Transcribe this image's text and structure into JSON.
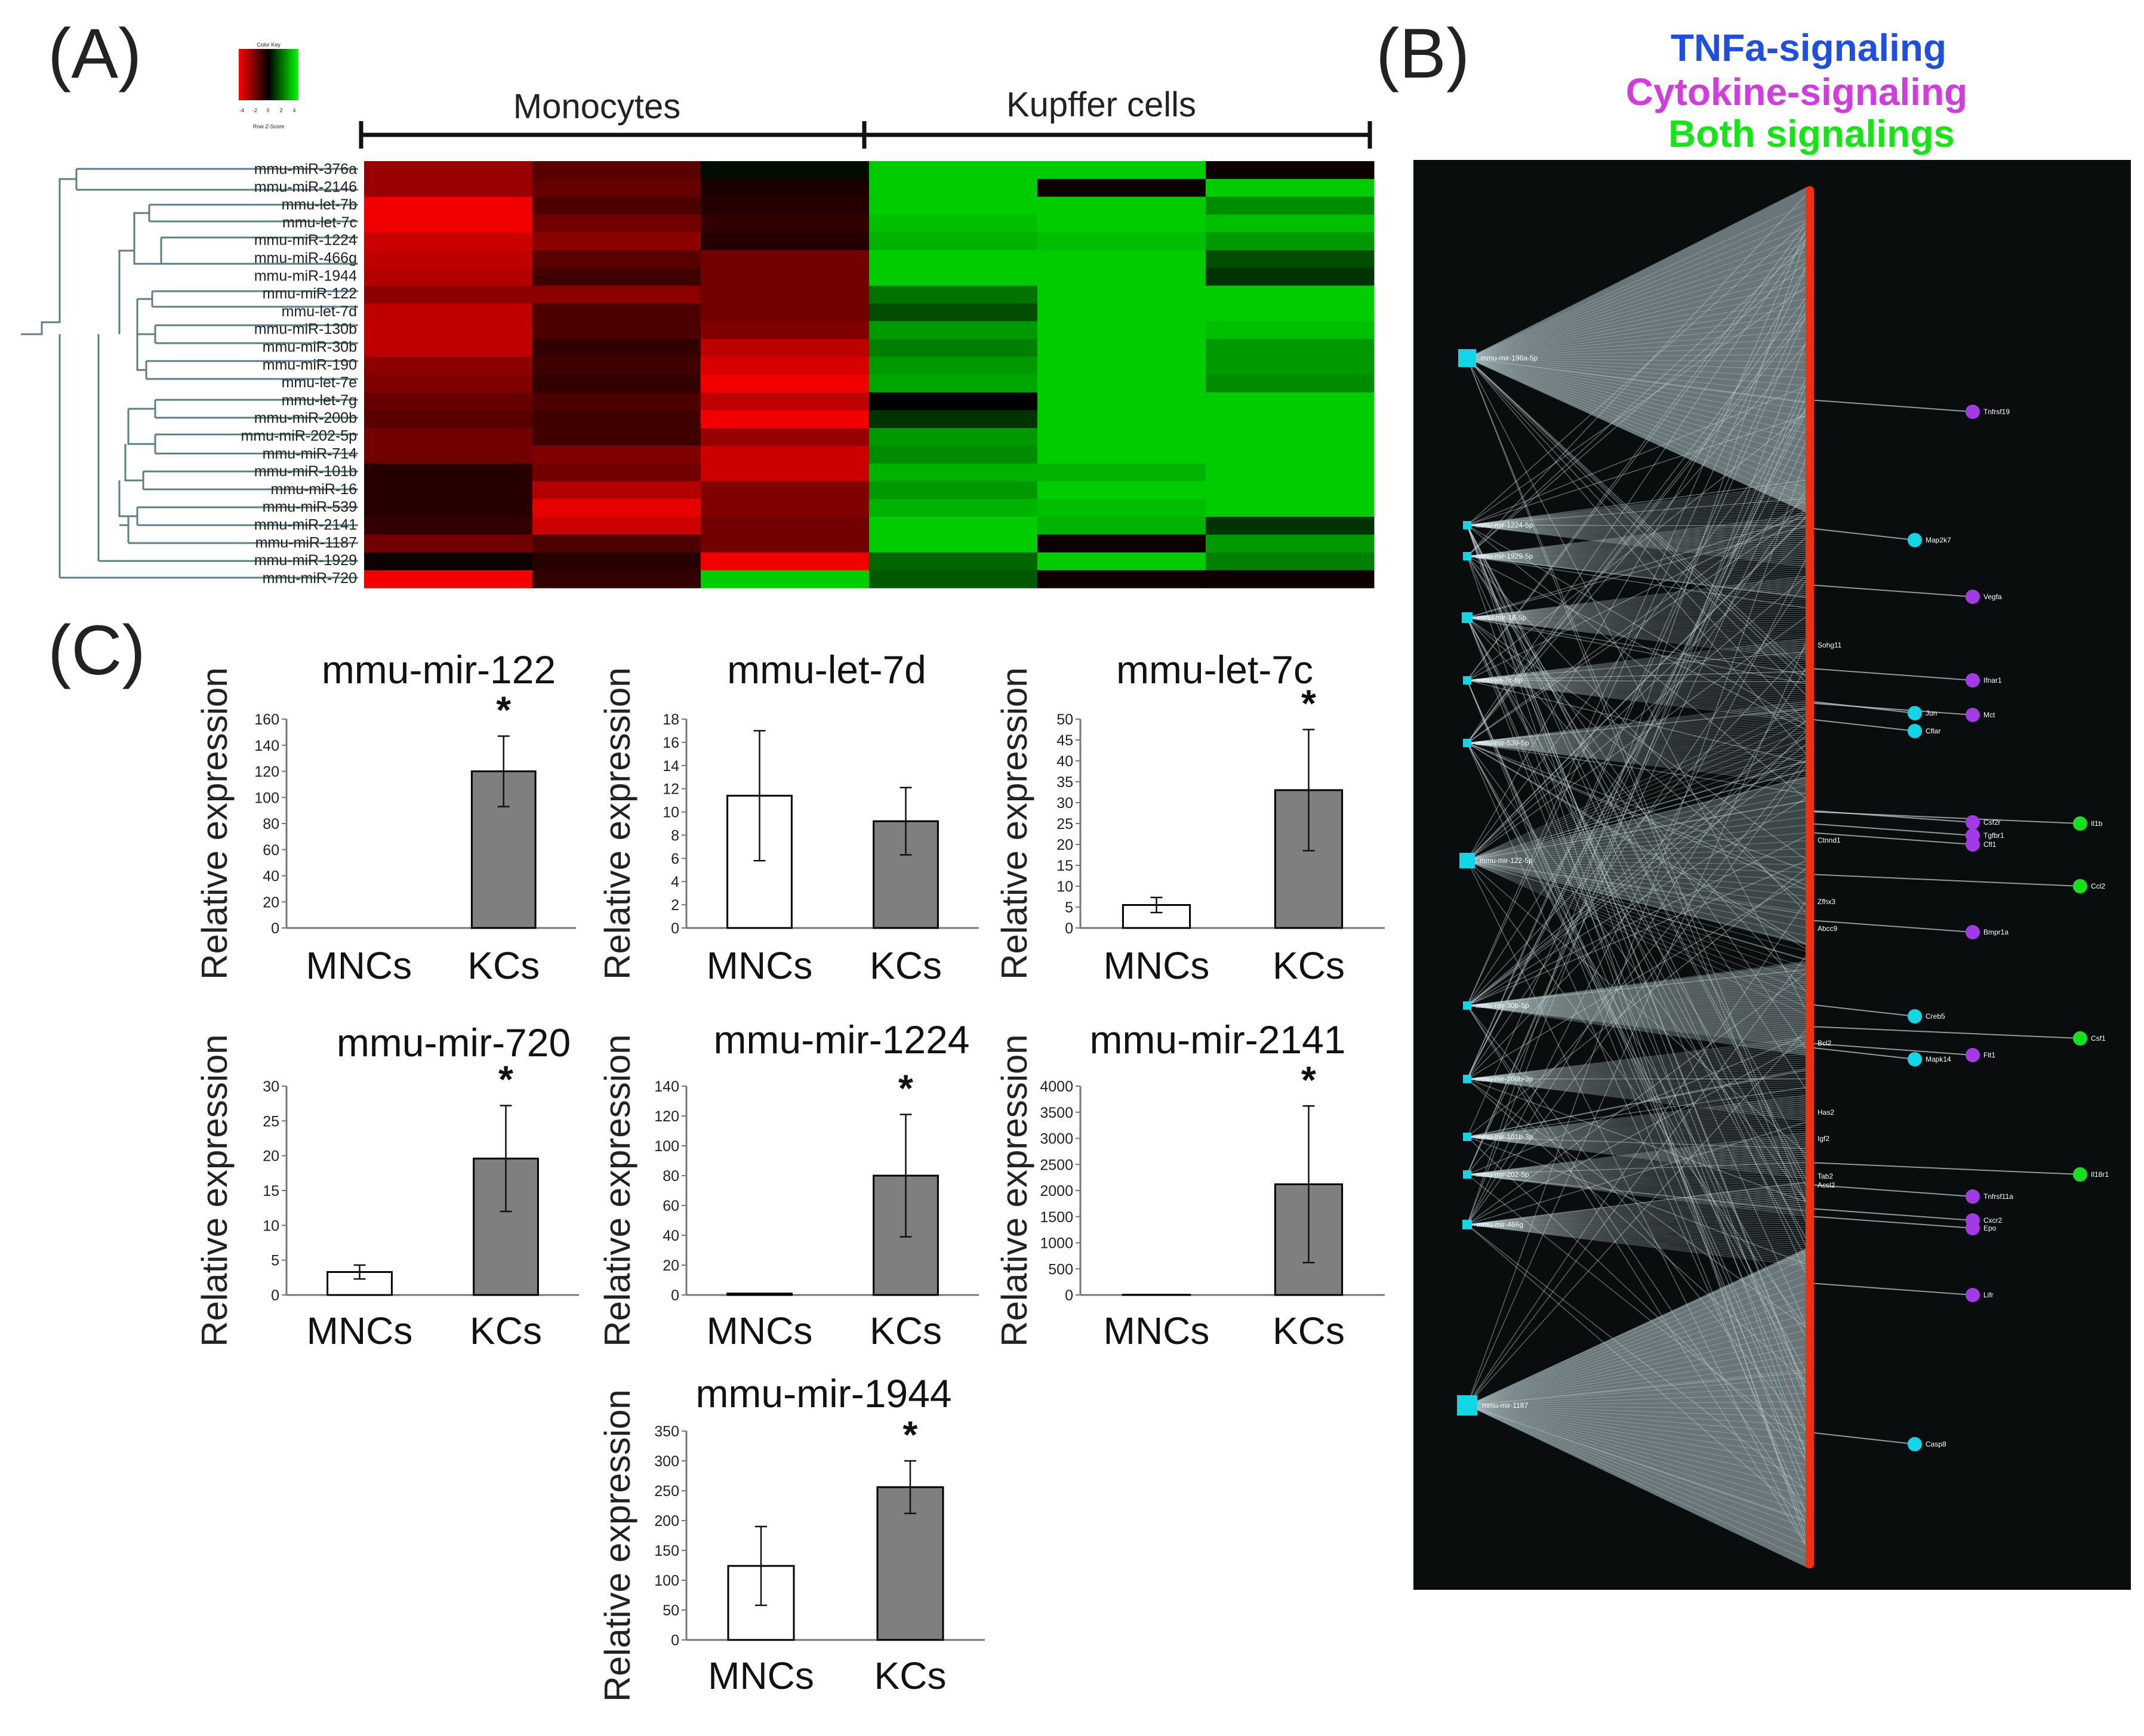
{
  "panels": {
    "a": "(A)",
    "b": "(B)",
    "c": "(C)"
  },
  "heatmap": {
    "color_key_title": "Color Key",
    "color_key_ticks": [
      "-4",
      "-2",
      "0",
      "2",
      "4"
    ],
    "color_key_label": "Row Z-Score",
    "groups": [
      "Monocytes",
      "Kupffer cells"
    ],
    "rows": [
      {
        "label": "mmu-miR-376a",
        "z": [
          0.6,
          0.35,
          -0.05,
          -0.8,
          -0.8,
          0.05
        ]
      },
      {
        "label": "mmu-miR-2146",
        "z": [
          0.6,
          0.4,
          0.1,
          -0.8,
          0.05,
          -0.8
        ]
      },
      {
        "label": "mmu-let-7b",
        "z": [
          0.95,
          0.3,
          0.15,
          -0.8,
          -0.8,
          -0.55
        ]
      },
      {
        "label": "mmu-let-7c",
        "z": [
          0.95,
          0.45,
          0.2,
          -0.75,
          -0.8,
          -0.75
        ]
      },
      {
        "label": "mmu-miR-1224",
        "z": [
          0.8,
          0.55,
          0.15,
          -0.7,
          -0.75,
          -0.6
        ]
      },
      {
        "label": "mmu-miR-466g",
        "z": [
          0.75,
          0.35,
          0.45,
          -0.8,
          -0.8,
          -0.3
        ]
      },
      {
        "label": "mmu-miR-1944",
        "z": [
          0.7,
          0.25,
          0.45,
          -0.8,
          -0.8,
          -0.2
        ]
      },
      {
        "label": "mmu-miR-122",
        "z": [
          0.55,
          0.55,
          0.45,
          -0.45,
          -0.8,
          -0.8
        ]
      },
      {
        "label": "mmu-let-7d",
        "z": [
          0.75,
          0.3,
          0.45,
          -0.3,
          -0.8,
          -0.8
        ]
      },
      {
        "label": "mmu-miR-130b",
        "z": [
          0.75,
          0.3,
          0.5,
          -0.6,
          -0.8,
          -0.75
        ]
      },
      {
        "label": "mmu-miR-30b",
        "z": [
          0.75,
          0.2,
          0.75,
          -0.5,
          -0.8,
          -0.6
        ]
      },
      {
        "label": "mmu-miR-190",
        "z": [
          0.55,
          0.25,
          0.85,
          -0.6,
          -0.8,
          -0.6
        ]
      },
      {
        "label": "mmu-let-7e",
        "z": [
          0.5,
          0.2,
          0.95,
          -0.65,
          -0.8,
          -0.55
        ]
      },
      {
        "label": "mmu-let-7g",
        "z": [
          0.4,
          0.3,
          0.75,
          0.0,
          -0.8,
          -0.8
        ]
      },
      {
        "label": "mmu-miR-200b",
        "z": [
          0.35,
          0.25,
          0.95,
          -0.2,
          -0.8,
          -0.8
        ]
      },
      {
        "label": "mmu-miR-202-5p",
        "z": [
          0.45,
          0.25,
          0.6,
          -0.6,
          -0.8,
          -0.8
        ]
      },
      {
        "label": "mmu-miR-714",
        "z": [
          0.45,
          0.5,
          0.8,
          -0.55,
          -0.8,
          -0.8
        ]
      },
      {
        "label": "mmu-miR-101b",
        "z": [
          0.15,
          0.45,
          0.8,
          -0.7,
          -0.7,
          -0.8
        ]
      },
      {
        "label": "mmu-miR-16",
        "z": [
          0.15,
          0.7,
          0.5,
          -0.6,
          -0.8,
          -0.8
        ]
      },
      {
        "label": "mmu-miR-539",
        "z": [
          0.15,
          0.9,
          0.5,
          -0.7,
          -0.75,
          -0.8
        ]
      },
      {
        "label": "mmu-miR-2141",
        "z": [
          0.2,
          0.8,
          0.45,
          -0.8,
          -0.7,
          -0.2
        ]
      },
      {
        "label": "mmu-miR-1187",
        "z": [
          0.45,
          0.3,
          0.45,
          -0.8,
          0.05,
          -0.6
        ]
      },
      {
        "label": "mmu-miR-1929",
        "z": [
          0.05,
          0.15,
          0.95,
          -0.4,
          -0.8,
          -0.5
        ]
      },
      {
        "label": "mmu-miR-720",
        "z": [
          0.95,
          0.2,
          -0.8,
          -0.35,
          0.05,
          0.05
        ]
      }
    ]
  },
  "network": {
    "legend": [
      {
        "text": "TNFa-signaling",
        "color": "#1f4fe0"
      },
      {
        "text": "Cytokine-signaling",
        "color": "#d13be0"
      },
      {
        "text": "Both signalings",
        "color": "#15e515"
      }
    ],
    "mirna_nodes": [
      "mmu-mir-196a-5p",
      "mmu-mir-1224-5p",
      "mmu-mir-1929-5p",
      "mmu-mir-16-5p",
      "mmu-let-7c-5p",
      "mmu-mir-539-5p",
      "mmu-mir-122-5p",
      "mmu-mir-30b-5p",
      "mmu-mir-200b-3p",
      "mmu-mir-101b-3p",
      "mmu-mir-202-5p",
      "mmu-mir-466g",
      "mmu-mir-1187"
    ],
    "gene_nodes": [
      "Sohg11",
      "Ctnnd1",
      "Zfhx3",
      "Abcc9",
      "Bcl2",
      "Has2",
      "Igf2",
      "Tab2",
      "Acsl2"
    ],
    "target_nodes": [
      {
        "label": "Tnfrsf19",
        "type": "cytokine"
      },
      {
        "label": "Map2k7",
        "type": "tnf"
      },
      {
        "label": "Vegfa",
        "type": "cytokine"
      },
      {
        "label": "Ifnar1",
        "type": "cytokine"
      },
      {
        "label": "Jun",
        "type": "tnf"
      },
      {
        "label": "Mct",
        "type": "cytokine"
      },
      {
        "label": "Cflar",
        "type": "tnf"
      },
      {
        "label": "Csf2r",
        "type": "cytokine"
      },
      {
        "label": "Tgfbr1",
        "type": "cytokine"
      },
      {
        "label": "Cfl1",
        "type": "cytokine"
      },
      {
        "label": "Il1b",
        "type": "both"
      },
      {
        "label": "Ccl2",
        "type": "both"
      },
      {
        "label": "Bmpr1a",
        "type": "cytokine"
      },
      {
        "label": "Creb5",
        "type": "tnf"
      },
      {
        "label": "Csf1",
        "type": "both"
      },
      {
        "label": "Mapk14",
        "type": "tnf"
      },
      {
        "label": "Flt1",
        "type": "cytokine"
      },
      {
        "label": "Il18r1",
        "type": "both"
      },
      {
        "label": "Tnfrsf11a",
        "type": "cytokine"
      },
      {
        "label": "Cxcr2",
        "type": "cytokine"
      },
      {
        "label": "Epo",
        "type": "cytokine"
      },
      {
        "label": "Lifr",
        "type": "cytokine"
      },
      {
        "label": "Casp8",
        "type": "tnf"
      }
    ],
    "colors": {
      "tnf": "#12d6e6",
      "cytokine": "#a23be6",
      "both": "#18e01e",
      "mirna": "#12d6e6",
      "spine": "#f0300e",
      "background": "#0a0d0e"
    }
  },
  "bar_charts": {
    "y_axis_label": "Relative expression",
    "significance_mark": "*",
    "colors": {
      "mncs": "#ffffff",
      "kcs": "#7f7f7f",
      "outline": "#000000"
    }
  },
  "chart_data": [
    {
      "type": "bar",
      "title": "mmu-mir-122",
      "categories": [
        "MNCs",
        "KCs"
      ],
      "values": [
        0,
        120
      ],
      "errors": [
        0,
        27
      ],
      "ylim": [
        0,
        160
      ],
      "ticks": [
        0,
        20,
        40,
        60,
        80,
        100,
        120,
        140,
        160
      ],
      "significant": [
        false,
        true
      ],
      "ylabel": "Relative expression"
    },
    {
      "type": "bar",
      "title": "mmu-let-7d",
      "categories": [
        "MNCs",
        "KCs"
      ],
      "values": [
        11.4,
        9.2
      ],
      "errors": [
        5.6,
        2.9
      ],
      "ylim": [
        0,
        18
      ],
      "ticks": [
        0,
        2,
        4,
        6,
        8,
        10,
        12,
        14,
        16,
        18
      ],
      "significant": [
        false,
        false
      ],
      "ylabel": "Relative expression"
    },
    {
      "type": "bar",
      "title": "mmu-let-7c",
      "categories": [
        "MNCs",
        "KCs"
      ],
      "values": [
        5.5,
        33
      ],
      "errors": [
        1.8,
        14.5
      ],
      "ylim": [
        0,
        50
      ],
      "ticks": [
        0,
        5,
        10,
        15,
        20,
        25,
        30,
        35,
        40,
        45,
        50
      ],
      "significant": [
        false,
        true
      ],
      "ylabel": "Relative expression"
    },
    {
      "type": "bar",
      "title": "mmu-mir-720",
      "categories": [
        "MNCs",
        "KCs"
      ],
      "values": [
        3.3,
        19.6
      ],
      "errors": [
        1.0,
        7.6
      ],
      "ylim": [
        0,
        30
      ],
      "ticks": [
        0,
        5,
        10,
        15,
        20,
        25,
        30
      ],
      "significant": [
        false,
        true
      ],
      "ylabel": "Relative expression"
    },
    {
      "type": "bar",
      "title": "mmu-mir-1224",
      "categories": [
        "MNCs",
        "KCs"
      ],
      "values": [
        1,
        80
      ],
      "errors": [
        0,
        41
      ],
      "ylim": [
        0,
        140
      ],
      "ticks": [
        0,
        20,
        40,
        60,
        80,
        100,
        120,
        140
      ],
      "significant": [
        false,
        true
      ],
      "ylabel": "Relative expression"
    },
    {
      "type": "bar",
      "title": "mmu-mir-2141",
      "categories": [
        "MNCs",
        "KCs"
      ],
      "values": [
        5,
        2120
      ],
      "errors": [
        0,
        1500
      ],
      "ylim": [
        0,
        4000
      ],
      "ticks": [
        0,
        500,
        1000,
        1500,
        2000,
        2500,
        3000,
        3500,
        4000
      ],
      "significant": [
        false,
        true
      ],
      "ylabel": "Relative expression"
    },
    {
      "type": "bar",
      "title": "mmu-mir-1944",
      "categories": [
        "MNCs",
        "KCs"
      ],
      "values": [
        124,
        256
      ],
      "errors": [
        66,
        44
      ],
      "ylim": [
        0,
        350
      ],
      "ticks": [
        0,
        50,
        100,
        150,
        200,
        250,
        300,
        350
      ],
      "significant": [
        false,
        true
      ],
      "ylabel": "Relative expression"
    }
  ]
}
